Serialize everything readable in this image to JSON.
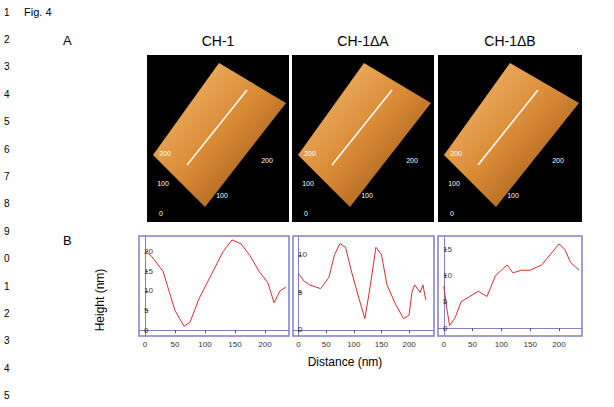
{
  "figure_label": "Fig. 4",
  "line_numbers": [
    "1",
    "2",
    "3",
    "4",
    "5",
    "6",
    "7",
    "8",
    "9",
    "0",
    "1",
    "2",
    "3",
    "4",
    "5"
  ],
  "panel_a": {
    "letter": "A",
    "images": [
      {
        "title": "CH-1",
        "axis_labels": {
          "side": [
            "0",
            "100",
            "200"
          ],
          "front": [
            "100",
            "200"
          ]
        }
      },
      {
        "title": "CH-1ΔA",
        "axis_labels": {
          "side": [
            "0",
            "100",
            "200"
          ],
          "front": [
            "100",
            "200"
          ]
        }
      },
      {
        "title": "CH-1ΔB",
        "axis_labels": {
          "side": [
            "0",
            "100",
            "200"
          ],
          "front": [
            "100",
            "200"
          ]
        }
      }
    ]
  },
  "panel_b": {
    "letter": "B",
    "y_label": "Height (nm)",
    "x_label": "Distance (nm)"
  },
  "chart_data": [
    {
      "type": "line",
      "color": "#d03030",
      "grid": false,
      "x": [
        0,
        10,
        30,
        50,
        65,
        75,
        90,
        110,
        130,
        145,
        160,
        175,
        190,
        205,
        215,
        225,
        235
      ],
      "values": [
        20,
        19,
        15,
        5,
        1,
        2,
        8,
        14,
        20,
        23,
        22,
        19,
        15,
        12,
        7,
        10,
        11
      ],
      "xlim": [
        -10,
        240
      ],
      "xticks": [
        0,
        50,
        100,
        150,
        200
      ],
      "ylim": [
        -1.5,
        24
      ],
      "yticks": [
        0,
        5,
        10,
        15,
        20
      ]
    },
    {
      "type": "line",
      "color": "#d03030",
      "grid": false,
      "x": [
        0,
        10,
        20,
        40,
        55,
        65,
        75,
        85,
        95,
        110,
        120,
        130,
        140,
        150,
        160,
        175,
        190,
        200,
        205,
        210,
        220,
        225,
        230
      ],
      "values": [
        7.5,
        6.5,
        6,
        5.5,
        7,
        10,
        11.5,
        11,
        8,
        4,
        1.5,
        6,
        11,
        10,
        6,
        3.5,
        1.5,
        2,
        5,
        6,
        5,
        6,
        4
      ],
      "xlim": [
        -10,
        245
      ],
      "xticks": [
        0,
        50,
        100,
        150,
        200
      ],
      "ylim": [
        -0.8,
        12.5
      ],
      "yticks": [
        0,
        5,
        10
      ]
    },
    {
      "type": "line",
      "color": "#d03030",
      "grid": false,
      "x": [
        0,
        5,
        10,
        20,
        30,
        45,
        60,
        75,
        90,
        100,
        110,
        120,
        135,
        150,
        170,
        185,
        200,
        210,
        220,
        230,
        235
      ],
      "values": [
        8,
        4,
        0.5,
        2,
        5,
        6,
        7,
        6,
        10,
        11,
        12,
        10.5,
        11,
        11,
        12,
        14,
        16,
        15,
        12.5,
        11.5,
        11
      ],
      "xlim": [
        -10,
        240
      ],
      "xticks": [
        0,
        50,
        100,
        150,
        200
      ],
      "ylim": [
        -1.5,
        17.5
      ],
      "yticks": [
        0,
        5,
        10,
        15
      ]
    }
  ]
}
